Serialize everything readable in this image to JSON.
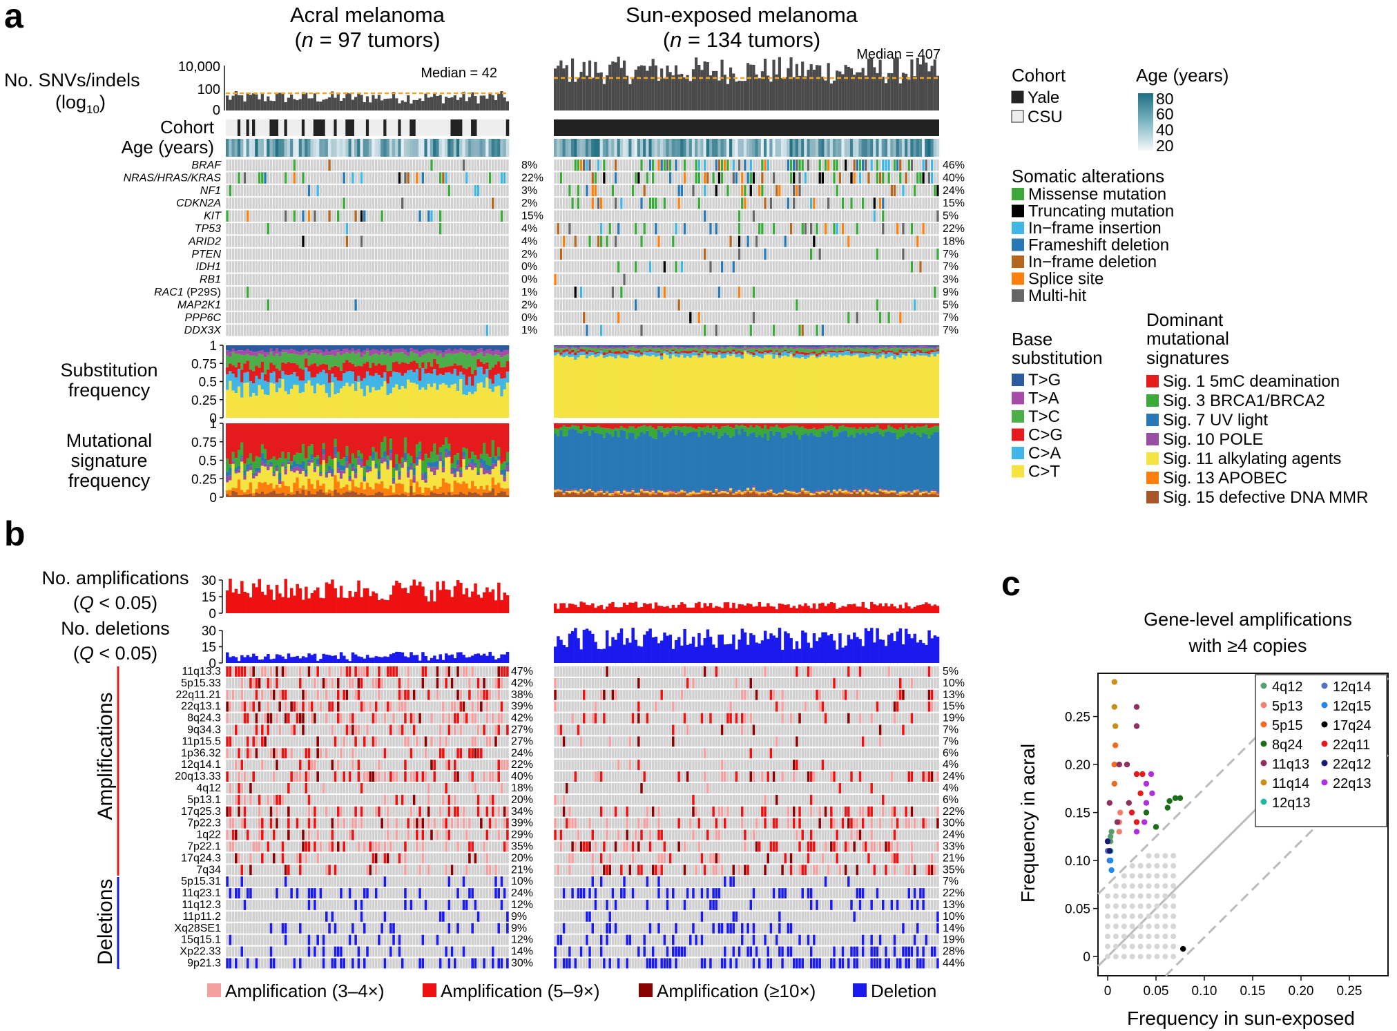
{
  "panel_a": {
    "letter": "a",
    "acral": {
      "title": "Acral melanoma",
      "n_prefix": "(",
      "n_italic": "n",
      "n_suffix": " = 97 tumors)",
      "median": "Median = 42"
    },
    "sun": {
      "title": "Sun-exposed melanoma",
      "n_prefix": "(",
      "n_italic": "n",
      "n_suffix": " = 134 tumors)",
      "median": "Median = 407"
    },
    "snv_label_1": "No. SNVs/indels",
    "snv_label_2": "(log",
    "snv_label_sub": "10",
    "snv_label_3": ")",
    "snv_ticks": [
      "10,000",
      "100",
      "0"
    ],
    "cohort_label": "Cohort",
    "age_label": "Age (years)",
    "genes": [
      {
        "name": "BRAF",
        "note": "",
        "acral": "8%",
        "sun": "46%"
      },
      {
        "name": "NRAS/HRAS/KRAS",
        "note": "",
        "acral": "22%",
        "sun": "40%"
      },
      {
        "name": "NF1",
        "note": "",
        "acral": "3%",
        "sun": "24%"
      },
      {
        "name": "CDKN2A",
        "note": "",
        "acral": "2%",
        "sun": "15%"
      },
      {
        "name": "KIT",
        "note": "",
        "acral": "15%",
        "sun": "5%"
      },
      {
        "name": "TP53",
        "note": "",
        "acral": "4%",
        "sun": "22%"
      },
      {
        "name": "ARID2",
        "note": "",
        "acral": "4%",
        "sun": "18%"
      },
      {
        "name": "PTEN",
        "note": "",
        "acral": "2%",
        "sun": "7%"
      },
      {
        "name": "IDH1",
        "note": "",
        "acral": "0%",
        "sun": "7%"
      },
      {
        "name": "RB1",
        "note": "",
        "acral": "0%",
        "sun": "3%"
      },
      {
        "name": "RAC1",
        "note": " (P29S)",
        "acral": "1%",
        "sun": "9%"
      },
      {
        "name": "MAP2K1",
        "note": "",
        "acral": "2%",
        "sun": "5%"
      },
      {
        "name": "PPP6C",
        "note": "",
        "acral": "0%",
        "sun": "7%"
      },
      {
        "name": "DDX3X",
        "note": "",
        "acral": "1%",
        "sun": "7%"
      }
    ],
    "subst_label": [
      "Substitution",
      "frequency"
    ],
    "sig_label": [
      "Mutational",
      "signature",
      "frequency"
    ],
    "freq_ticks": [
      "1",
      "0.75",
      "0.5",
      "0.25",
      "0"
    ]
  },
  "legend_a": {
    "cohort_title": "Cohort",
    "cohort_items": [
      {
        "label": "Yale",
        "color": "#222222"
      },
      {
        "label": "CSU",
        "color": "#eeeeee"
      }
    ],
    "age_title": "Age (years)",
    "age_ticks": [
      "80",
      "60",
      "40",
      "20"
    ],
    "somatic_title": "Somatic alterations",
    "somatic_items": [
      {
        "label": "Missense mutation",
        "color": "#3aa93a"
      },
      {
        "label": "Truncating mutation",
        "color": "#000000"
      },
      {
        "label": "In−frame insertion",
        "color": "#41b6e6"
      },
      {
        "label": "Frameshift deletion",
        "color": "#2878b5"
      },
      {
        "label": "In−frame deletion",
        "color": "#b5651d"
      },
      {
        "label": "Splice site",
        "color": "#ff7f0e"
      },
      {
        "label": "Multi-hit",
        "color": "#666666"
      }
    ],
    "base_title": [
      "Base",
      "substitution"
    ],
    "base_items": [
      {
        "label": "T>G",
        "color": "#2c5aa0"
      },
      {
        "label": "T>A",
        "color": "#a64ca6"
      },
      {
        "label": "T>C",
        "color": "#4daf4a"
      },
      {
        "label": "C>G",
        "color": "#e41a1c"
      },
      {
        "label": "C>A",
        "color": "#41b6e6"
      },
      {
        "label": "C>T",
        "color": "#f5e342"
      }
    ],
    "sig_title": [
      "Dominant",
      "mutational",
      "signatures"
    ],
    "sig_items": [
      {
        "label": "Sig. 1 5mC deamination",
        "color": "#e41a1c"
      },
      {
        "label": "Sig. 3 BRCA1/BRCA2",
        "color": "#3aa93a"
      },
      {
        "label": "Sig. 7 UV light",
        "color": "#2878b5"
      },
      {
        "label": "Sig. 10 POLE",
        "color": "#984ea3"
      },
      {
        "label": "Sig. 11 alkylating agents",
        "color": "#f5e342"
      },
      {
        "label": "Sig. 13 APOBEC",
        "color": "#ff7f0e"
      },
      {
        "label": "Sig. 15 defective DNA MMR",
        "color": "#a65628"
      }
    ]
  },
  "panel_b": {
    "letter": "b",
    "amp_label": [
      "No. amplifications",
      "(",
      "Q",
      " < 0.05)"
    ],
    "del_label": [
      "No. deletions",
      "(",
      "Q",
      " < 0.05)"
    ],
    "amp_ticks": [
      "30",
      "15",
      "0"
    ],
    "del_ticks": [
      "30",
      "15",
      "0"
    ],
    "side_amp": "Amplifications",
    "side_del": "Deletions",
    "regions": [
      {
        "name": "11q13.3",
        "type": "amp",
        "acral": "47%",
        "sun": "5%"
      },
      {
        "name": "5p15.33",
        "type": "amp",
        "acral": "42%",
        "sun": "10%"
      },
      {
        "name": "22q11.21",
        "type": "amp",
        "acral": "38%",
        "sun": "13%"
      },
      {
        "name": "22q13.1",
        "type": "amp",
        "acral": "39%",
        "sun": "15%"
      },
      {
        "name": "8q24.3",
        "type": "amp",
        "acral": "42%",
        "sun": "19%"
      },
      {
        "name": "9q34.3",
        "type": "amp",
        "acral": "27%",
        "sun": "7%"
      },
      {
        "name": "11p15.5",
        "type": "amp",
        "acral": "27%",
        "sun": "7%"
      },
      {
        "name": "1p36.32",
        "type": "amp",
        "acral": "24%",
        "sun": "6%"
      },
      {
        "name": "12q14.1",
        "type": "amp",
        "acral": "22%",
        "sun": "4%"
      },
      {
        "name": "20q13.33",
        "type": "amp",
        "acral": "40%",
        "sun": "24%"
      },
      {
        "name": "4q12",
        "type": "amp",
        "acral": "18%",
        "sun": "4%"
      },
      {
        "name": "5p13.1",
        "type": "amp",
        "acral": "20%",
        "sun": "6%"
      },
      {
        "name": "17q25.3",
        "type": "amp",
        "acral": "34%",
        "sun": "22%"
      },
      {
        "name": "7p22.3",
        "type": "amp",
        "acral": "39%",
        "sun": "30%"
      },
      {
        "name": "1q22",
        "type": "amp",
        "acral": "29%",
        "sun": "24%"
      },
      {
        "name": "7p22.1",
        "type": "amp",
        "acral": "35%",
        "sun": "33%"
      },
      {
        "name": "17q24.3",
        "type": "amp",
        "acral": "20%",
        "sun": "21%"
      },
      {
        "name": "7q34",
        "type": "amp",
        "acral": "21%",
        "sun": "35%"
      },
      {
        "name": "5p15.31",
        "type": "del",
        "acral": "10%",
        "sun": "7%"
      },
      {
        "name": "11q23.1",
        "type": "del",
        "acral": "24%",
        "sun": "22%"
      },
      {
        "name": "11q12.3",
        "type": "del",
        "acral": "12%",
        "sun": "13%"
      },
      {
        "name": "11p11.2",
        "type": "del",
        "acral": "9%",
        "sun": "10%"
      },
      {
        "name": "Xq28SE1",
        "type": "del",
        "acral": "9%",
        "sun": "14%"
      },
      {
        "name": "15q15.1",
        "type": "del",
        "acral": "12%",
        "sun": "19%"
      },
      {
        "name": "Xp22.33",
        "type": "del",
        "acral": "14%",
        "sun": "28%"
      },
      {
        "name": "9p21.3",
        "type": "del",
        "acral": "30%",
        "sun": "44%"
      }
    ],
    "legend": [
      {
        "label": "Amplification (3–4×)",
        "color": "#f4a0a0"
      },
      {
        "label": "Amplification (5–9×)",
        "color": "#ee1111"
      },
      {
        "label": "Amplification (≥10×)",
        "color": "#8b0000"
      },
      {
        "label": "Deletion",
        "color": "#1a1aee"
      }
    ]
  },
  "panel_c": {
    "letter": "c",
    "title": [
      "Gene-level amplifications",
      "with ≥4 copies"
    ]
  },
  "chart_data": {
    "type": "scatter",
    "title": "Gene-level amplifications with ≥4 copies",
    "xlabel": "Frequency in sun-exposed",
    "ylabel": "Frequency in acral",
    "xlim": [
      -0.01,
      0.29
    ],
    "ylim": [
      -0.02,
      0.295
    ],
    "xticks": [
      "0",
      "0.05",
      "0.10",
      "0.15",
      "0.20",
      "0.25"
    ],
    "yticks": [
      "0",
      "0.05",
      "0.10",
      "0.15",
      "0.20",
      "0.25"
    ],
    "legend_position": "top-right",
    "series": [
      {
        "name": "4q12",
        "color": "#5a9e6f",
        "points": [
          [
            0.003,
            0.125
          ],
          [
            0.004,
            0.13
          ],
          [
            0.003,
            0.12
          ]
        ]
      },
      {
        "name": "5p13",
        "color": "#f08070",
        "points": [
          [
            0.012,
            0.14
          ],
          [
            0.013,
            0.15
          ],
          [
            0.012,
            0.13
          ]
        ]
      },
      {
        "name": "5p15",
        "color": "#f06a20",
        "points": [
          [
            0.007,
            0.2
          ],
          [
            0.008,
            0.22
          ],
          [
            0.007,
            0.18
          ]
        ]
      },
      {
        "name": "8q24",
        "color": "#1a6e1a",
        "points": [
          [
            0.05,
            0.135
          ],
          [
            0.062,
            0.155
          ],
          [
            0.064,
            0.162
          ],
          [
            0.07,
            0.165
          ],
          [
            0.075,
            0.165
          ],
          [
            0.04,
            0.15
          ]
        ]
      },
      {
        "name": "11q13",
        "color": "#8e3060",
        "points": [
          [
            0.002,
            0.16
          ],
          [
            0.012,
            0.2
          ],
          [
            0.02,
            0.2
          ],
          [
            0.03,
            0.26
          ],
          [
            0.03,
            0.24
          ],
          [
            0.022,
            0.16
          ],
          [
            0.01,
            0.14
          ]
        ]
      },
      {
        "name": "11q14",
        "color": "#c8901a",
        "points": [
          [
            0.007,
            0.286
          ],
          [
            0.007,
            0.26
          ],
          [
            0.008,
            0.24
          ]
        ]
      },
      {
        "name": "12q13",
        "color": "#20b9a0",
        "points": [
          [
            0.002,
            0.1
          ],
          [
            0.003,
            0.11
          ]
        ]
      },
      {
        "name": "12q14",
        "color": "#5570c0",
        "points": [
          [
            0.0,
            0.12
          ],
          [
            0.0,
            0.11
          ],
          [
            0.002,
            0.1
          ]
        ]
      },
      {
        "name": "12q15",
        "color": "#2288ee",
        "points": [
          [
            0.003,
            0.1
          ],
          [
            0.004,
            0.09
          ]
        ]
      },
      {
        "name": "17q24",
        "color": "#000000",
        "points": [
          [
            0.078,
            0.008
          ]
        ]
      },
      {
        "name": "22q11",
        "color": "#e41a1c",
        "points": [
          [
            0.03,
            0.19
          ],
          [
            0.036,
            0.19
          ],
          [
            0.034,
            0.17
          ],
          [
            0.025,
            0.15
          ],
          [
            0.03,
            0.14
          ]
        ]
      },
      {
        "name": "22q12",
        "color": "#1a1a6e",
        "points": [
          [
            0.0,
            0.12
          ],
          [
            0.002,
            0.11
          ]
        ]
      },
      {
        "name": "22q13",
        "color": "#b030e0",
        "points": [
          [
            0.04,
            0.18
          ],
          [
            0.045,
            0.19
          ],
          [
            0.046,
            0.17
          ],
          [
            0.04,
            0.16
          ],
          [
            0.038,
            0.14
          ],
          [
            0.03,
            0.13
          ]
        ]
      }
    ]
  }
}
